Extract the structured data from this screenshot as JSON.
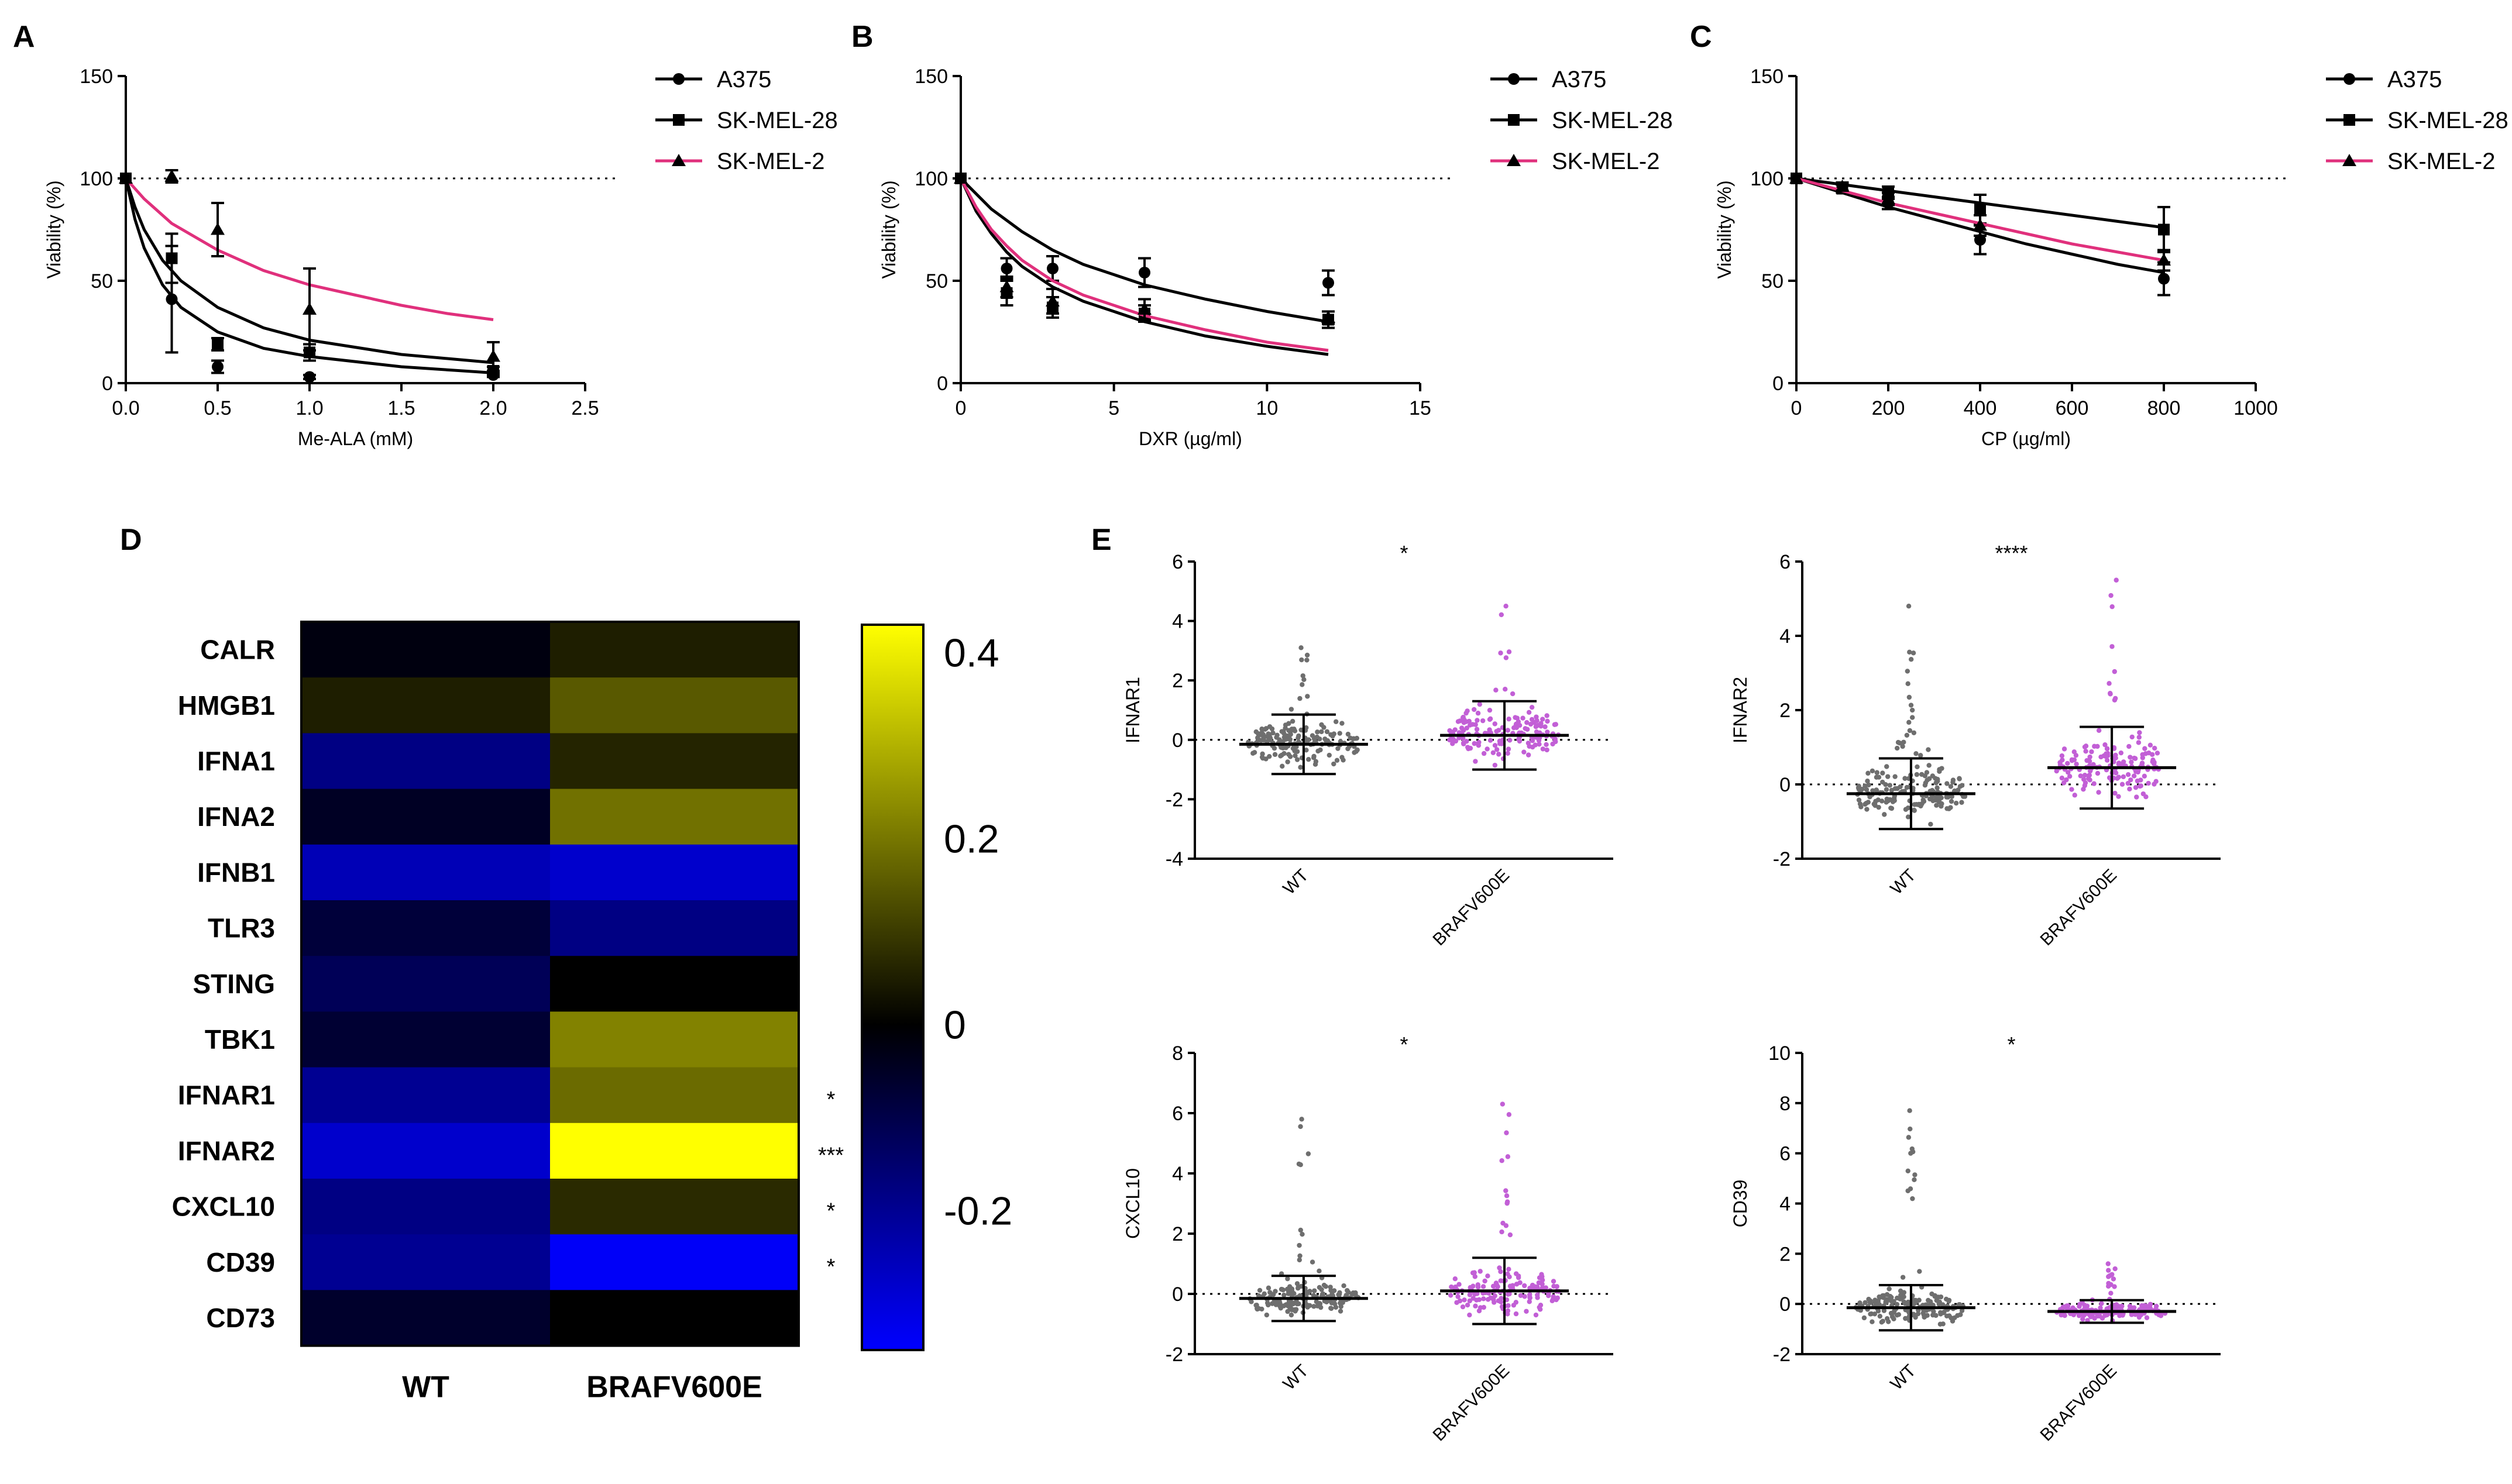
{
  "colors": {
    "black": "#000000",
    "magenta": "#e0307c",
    "purple": "#c25fd6",
    "grey": "#6e6e6e"
  },
  "panel_labels": {
    "A": "A",
    "B": "B",
    "C": "C",
    "D": "D",
    "E": "E"
  },
  "chart_data": [
    {
      "id": "A",
      "type": "line",
      "title": "",
      "xlabel": "Me-ALA (mM)",
      "ylabel": "Viability (%)",
      "xlim": [
        0,
        2.5
      ],
      "ylim": [
        0,
        150
      ],
      "xticks": [
        "0.0",
        "0.5",
        "1.0",
        "1.5",
        "2.0",
        "2.5"
      ],
      "yticks": [
        "0",
        "50",
        "100",
        "150"
      ],
      "reference_line": 100,
      "legend": [
        "A375",
        "SK-MEL-28",
        "SK-MEL-2"
      ],
      "series": [
        {
          "name": "A375",
          "marker": "circle",
          "color": "#000000",
          "points": [
            {
              "x": 0,
              "y": 100,
              "err": 0
            },
            {
              "x": 0.25,
              "y": 41,
              "err": 26
            },
            {
              "x": 0.5,
              "y": 8,
              "err": 3
            },
            {
              "x": 1.0,
              "y": 3,
              "err": 1
            },
            {
              "x": 2.0,
              "y": 4,
              "err": 1
            }
          ],
          "curve": [
            [
              0,
              100
            ],
            [
              0.05,
              80
            ],
            [
              0.1,
              66
            ],
            [
              0.2,
              48
            ],
            [
              0.3,
              37
            ],
            [
              0.5,
              25
            ],
            [
              0.75,
              17
            ],
            [
              1.0,
              13
            ],
            [
              1.5,
              8
            ],
            [
              2.0,
              5
            ]
          ]
        },
        {
          "name": "SK-MEL-28",
          "marker": "square",
          "color": "#000000",
          "points": [
            {
              "x": 0,
              "y": 100,
              "err": 0
            },
            {
              "x": 0.25,
              "y": 61,
              "err": 12
            },
            {
              "x": 0.5,
              "y": 19,
              "err": 3
            },
            {
              "x": 1.0,
              "y": 15,
              "err": 4
            },
            {
              "x": 2.0,
              "y": 6,
              "err": 2
            }
          ],
          "curve": [
            [
              0,
              100
            ],
            [
              0.05,
              86
            ],
            [
              0.1,
              75
            ],
            [
              0.2,
              60
            ],
            [
              0.3,
              50
            ],
            [
              0.5,
              37
            ],
            [
              0.75,
              27
            ],
            [
              1.0,
              21
            ],
            [
              1.5,
              14
            ],
            [
              2.0,
              10
            ]
          ]
        },
        {
          "name": "SK-MEL-2",
          "marker": "triangle",
          "color": "#e0307c",
          "points": [
            {
              "x": 0,
              "y": 100,
              "err": 0
            },
            {
              "x": 0.25,
              "y": 101,
              "err": 3
            },
            {
              "x": 0.5,
              "y": 75,
              "err": 13
            },
            {
              "x": 1.0,
              "y": 36,
              "err": 20
            },
            {
              "x": 2.0,
              "y": 13,
              "err": 7
            }
          ],
          "curve": [
            [
              0,
              100
            ],
            [
              0.1,
              90
            ],
            [
              0.25,
              78
            ],
            [
              0.5,
              65
            ],
            [
              0.75,
              55
            ],
            [
              1.0,
              48
            ],
            [
              1.25,
              43
            ],
            [
              1.5,
              38
            ],
            [
              1.75,
              34
            ],
            [
              2.0,
              31
            ]
          ]
        }
      ]
    },
    {
      "id": "B",
      "type": "line",
      "title": "",
      "xlabel": "DXR (µg/ml)",
      "ylabel": "Viability (%)",
      "xlim": [
        0,
        15
      ],
      "ylim": [
        0,
        150
      ],
      "xticks": [
        "0",
        "5",
        "10",
        "15"
      ],
      "yticks": [
        "0",
        "50",
        "100",
        "150"
      ],
      "reference_line": 100,
      "legend": [
        "A375",
        "SK-MEL-28",
        "SK-MEL-2"
      ],
      "series": [
        {
          "name": "A375",
          "marker": "circle",
          "color": "#000000",
          "points": [
            {
              "x": 0,
              "y": 100,
              "err": 0
            },
            {
              "x": 1.5,
              "y": 56,
              "err": 5
            },
            {
              "x": 3,
              "y": 56,
              "err": 6
            },
            {
              "x": 6,
              "y": 54,
              "err": 7
            },
            {
              "x": 12,
              "y": 49,
              "err": 6
            }
          ],
          "curve": [
            [
              0,
              100
            ],
            [
              1,
              85
            ],
            [
              2,
              74
            ],
            [
              3,
              65
            ],
            [
              4,
              58
            ],
            [
              6,
              48
            ],
            [
              8,
              41
            ],
            [
              10,
              35
            ],
            [
              12,
              30
            ]
          ]
        },
        {
          "name": "SK-MEL-28",
          "marker": "square",
          "color": "#000000",
          "points": [
            {
              "x": 0,
              "y": 100,
              "err": 0
            },
            {
              "x": 1.5,
              "y": 44,
              "err": 6
            },
            {
              "x": 3,
              "y": 37,
              "err": 5
            },
            {
              "x": 6,
              "y": 34,
              "err": 4
            },
            {
              "x": 12,
              "y": 31,
              "err": 4
            }
          ],
          "curve": [
            [
              0,
              100
            ],
            [
              0.5,
              84
            ],
            [
              1,
              73
            ],
            [
              1.5,
              64
            ],
            [
              2,
              57
            ],
            [
              3,
              47
            ],
            [
              4,
              40
            ],
            [
              6,
              30
            ],
            [
              8,
              23
            ],
            [
              10,
              18
            ],
            [
              12,
              14
            ]
          ]
        },
        {
          "name": "SK-MEL-2",
          "marker": "triangle",
          "color": "#e0307c",
          "points": [
            {
              "x": 0,
              "y": 100,
              "err": 0
            },
            {
              "x": 1.5,
              "y": 47,
              "err": 5
            },
            {
              "x": 3,
              "y": 40,
              "err": 6
            },
            {
              "x": 6,
              "y": 36,
              "err": 5
            },
            {
              "x": 12,
              "y": 32,
              "err": 3
            }
          ],
          "curve": [
            [
              0,
              100
            ],
            [
              0.5,
              86
            ],
            [
              1,
              75
            ],
            [
              1.5,
              67
            ],
            [
              2,
              60
            ],
            [
              3,
              50
            ],
            [
              4,
              43
            ],
            [
              6,
              33
            ],
            [
              8,
              26
            ],
            [
              10,
              20
            ],
            [
              12,
              16
            ]
          ]
        }
      ]
    },
    {
      "id": "C",
      "type": "line",
      "title": "",
      "xlabel": "CP (µg/ml)",
      "ylabel": "Viability (%)",
      "xlim": [
        0,
        1000
      ],
      "ylim": [
        0,
        150
      ],
      "xticks": [
        "0",
        "200",
        "400",
        "600",
        "800",
        "1000"
      ],
      "yticks": [
        "0",
        "50",
        "100",
        "150"
      ],
      "reference_line": 100,
      "legend": [
        "A375",
        "SK-MEL-28",
        "SK-MEL-2"
      ],
      "series": [
        {
          "name": "A375",
          "marker": "circle",
          "color": "#000000",
          "points": [
            {
              "x": 0,
              "y": 100,
              "err": 0
            },
            {
              "x": 100,
              "y": 95,
              "err": 2
            },
            {
              "x": 200,
              "y": 88,
              "err": 3
            },
            {
              "x": 400,
              "y": 70,
              "err": 7
            },
            {
              "x": 800,
              "y": 51,
              "err": 8
            }
          ],
          "curve": [
            [
              0,
              100
            ],
            [
              100,
              93
            ],
            [
              200,
              86
            ],
            [
              300,
              80
            ],
            [
              400,
              74
            ],
            [
              500,
              68
            ],
            [
              600,
              63
            ],
            [
              700,
              58
            ],
            [
              800,
              54
            ]
          ]
        },
        {
          "name": "SK-MEL-28",
          "marker": "square",
          "color": "#000000",
          "points": [
            {
              "x": 0,
              "y": 100,
              "err": 0
            },
            {
              "x": 100,
              "y": 95,
              "err": 2
            },
            {
              "x": 200,
              "y": 93,
              "err": 3
            },
            {
              "x": 400,
              "y": 85,
              "err": 7
            },
            {
              "x": 800,
              "y": 75,
              "err": 11
            }
          ],
          "curve": [
            [
              0,
              100
            ],
            [
              100,
              97
            ],
            [
              200,
              94
            ],
            [
              300,
              91
            ],
            [
              400,
              88
            ],
            [
              500,
              85
            ],
            [
              600,
              82
            ],
            [
              700,
              79
            ],
            [
              800,
              76
            ]
          ]
        },
        {
          "name": "SK-MEL-2",
          "marker": "triangle",
          "color": "#e0307c",
          "points": [
            {
              "x": 0,
              "y": 100,
              "err": 0
            },
            {
              "x": 100,
              "y": 96,
              "err": 2
            },
            {
              "x": 200,
              "y": 90,
              "err": 3
            },
            {
              "x": 400,
              "y": 77,
              "err": 5
            },
            {
              "x": 800,
              "y": 60,
              "err": 5
            }
          ],
          "curve": [
            [
              0,
              100
            ],
            [
              100,
              94
            ],
            [
              200,
              88
            ],
            [
              300,
              83
            ],
            [
              400,
              78
            ],
            [
              500,
              73
            ],
            [
              600,
              68
            ],
            [
              700,
              64
            ],
            [
              800,
              60
            ]
          ]
        }
      ]
    },
    {
      "id": "D",
      "type": "heatmap",
      "rows": [
        "CALR",
        "HMGB1",
        "IFNA1",
        "IFNA2",
        "IFNB1",
        "TLR3",
        "STING",
        "TBK1",
        "IFNAR1",
        "IFNAR2",
        "CXCL10",
        "CD39",
        "CD73"
      ],
      "columns": [
        "WT",
        "BRAFV600E"
      ],
      "values": [
        [
          -0.02,
          0.05
        ],
        [
          0.05,
          0.15
        ],
        [
          -0.18,
          0.06
        ],
        [
          -0.05,
          0.19
        ],
        [
          -0.25,
          -0.28
        ],
        [
          -0.08,
          -0.18
        ],
        [
          -0.12,
          0.0
        ],
        [
          -0.07,
          0.22
        ],
        [
          -0.2,
          0.18
        ],
        [
          -0.28,
          0.43
        ],
        [
          -0.18,
          0.07
        ],
        [
          -0.2,
          -0.34
        ],
        [
          -0.06,
          0.0
        ]
      ],
      "significance": [
        "",
        "",
        "",
        "",
        "",
        "",
        "",
        "",
        "*",
        "***",
        "*",
        "*",
        ""
      ],
      "colorbar": {
        "min": -0.35,
        "max": 0.43,
        "ticks": [
          "0.4",
          "0.2",
          "0",
          "-0.2"
        ],
        "tick_values": [
          0.4,
          0.2,
          0,
          -0.2
        ]
      }
    },
    {
      "id": "E1",
      "type": "scatter",
      "ylabel": "IFNAR1",
      "significance": "*",
      "categories": [
        "WT",
        "BRAFV600E"
      ],
      "ylim": [
        -4,
        6
      ],
      "yticks": [
        "6",
        "4",
        "2",
        "0",
        "-2",
        "-4"
      ],
      "groups": [
        {
          "name": "WT",
          "color": "#6e6e6e",
          "mean": -0.15,
          "sd_low": -1.15,
          "sd_high": 0.85,
          "n": 180,
          "min": -2.2,
          "max": 3.1
        },
        {
          "name": "BRAFV600E",
          "color": "#c25fd6",
          "mean": 0.15,
          "sd_low": -1.0,
          "sd_high": 1.3,
          "n": 160,
          "min": -2.0,
          "max": 4.5
        }
      ]
    },
    {
      "id": "E2",
      "type": "scatter",
      "ylabel": "IFNAR2",
      "significance": "****",
      "categories": [
        "WT",
        "BRAFV600E"
      ],
      "ylim": [
        -2,
        6
      ],
      "yticks": [
        "6",
        "4",
        "2",
        "0",
        "-2"
      ],
      "groups": [
        {
          "name": "WT",
          "color": "#6e6e6e",
          "mean": -0.25,
          "sd_low": -1.2,
          "sd_high": 0.7,
          "n": 180,
          "min": -1.5,
          "max": 4.8
        },
        {
          "name": "BRAFV600E",
          "color": "#c25fd6",
          "mean": 0.45,
          "sd_low": -0.65,
          "sd_high": 1.55,
          "n": 160,
          "min": -1.5,
          "max": 5.5
        }
      ]
    },
    {
      "id": "E3",
      "type": "scatter",
      "ylabel": "CXCL10",
      "significance": "*",
      "categories": [
        "WT",
        "BRAFV600E"
      ],
      "ylim": [
        -2,
        8
      ],
      "yticks": [
        "8",
        "6",
        "4",
        "2",
        "0",
        "-2"
      ],
      "groups": [
        {
          "name": "WT",
          "color": "#6e6e6e",
          "mean": -0.15,
          "sd_low": -0.9,
          "sd_high": 0.6,
          "n": 180,
          "min": -0.7,
          "max": 5.8
        },
        {
          "name": "BRAFV600E",
          "color": "#c25fd6",
          "mean": 0.1,
          "sd_low": -1.0,
          "sd_high": 1.2,
          "n": 160,
          "min": -0.7,
          "max": 6.3
        }
      ]
    },
    {
      "id": "E4",
      "type": "scatter",
      "ylabel": "CD39",
      "significance": "*",
      "categories": [
        "WT",
        "BRAFV600E"
      ],
      "ylim": [
        -2,
        10
      ],
      "yticks": [
        "10",
        "8",
        "6",
        "4",
        "2",
        "0",
        "-2"
      ],
      "groups": [
        {
          "name": "WT",
          "color": "#6e6e6e",
          "mean": -0.15,
          "sd_low": -1.05,
          "sd_high": 0.75,
          "n": 180,
          "min": -1.1,
          "max": 7.7
        },
        {
          "name": "BRAFV600E",
          "color": "#c25fd6",
          "mean": -0.3,
          "sd_low": -0.75,
          "sd_high": 0.15,
          "n": 160,
          "min": -0.9,
          "max": 1.6
        }
      ]
    }
  ]
}
